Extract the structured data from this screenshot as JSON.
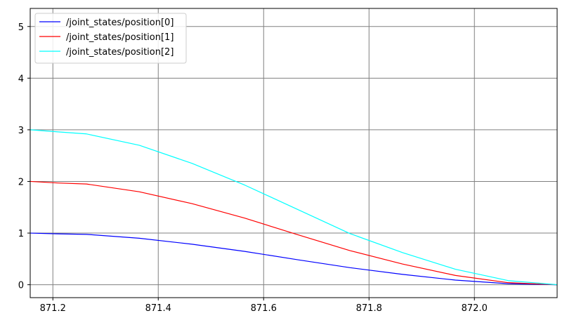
{
  "chart_data": {
    "type": "line",
    "title": "",
    "xlabel": "",
    "ylabel": "",
    "xlim": [
      871.157,
      872.157
    ],
    "ylim": [
      -0.25,
      5.35
    ],
    "x_ticks": [
      871.2,
      871.4,
      871.6,
      871.8,
      872.0
    ],
    "x_tick_labels": [
      "871.2",
      "871.4",
      "871.6",
      "871.8",
      "872.0"
    ],
    "y_ticks": [
      0,
      1,
      2,
      3,
      4,
      5
    ],
    "y_tick_labels": [
      "0",
      "1",
      "2",
      "3",
      "4",
      "5"
    ],
    "grid": true,
    "grid_color": "#808080",
    "legend_position": "top-left",
    "series": [
      {
        "name": "/joint_states/position[0]",
        "color": "#0000ff",
        "x": [
          871.157,
          871.21,
          871.264,
          871.364,
          871.464,
          871.564,
          871.664,
          871.764,
          871.864,
          871.964,
          872.064,
          872.157
        ],
        "y": [
          1.0,
          0.985,
          0.975,
          0.9,
          0.785,
          0.645,
          0.485,
          0.33,
          0.2,
          0.09,
          0.02,
          0.0
        ]
      },
      {
        "name": "/joint_states/position[1]",
        "color": "#ff0000",
        "x": [
          871.157,
          871.21,
          871.264,
          871.364,
          871.464,
          871.564,
          871.664,
          871.764,
          871.864,
          871.964,
          872.064,
          872.157
        ],
        "y": [
          2.0,
          1.97,
          1.95,
          1.8,
          1.57,
          1.29,
          0.97,
          0.66,
          0.4,
          0.18,
          0.04,
          0.0
        ]
      },
      {
        "name": "/joint_states/position[2]",
        "color": "#00ffff",
        "x": [
          871.157,
          871.21,
          871.264,
          871.364,
          871.464,
          871.564,
          871.664,
          871.764,
          871.864,
          871.964,
          872.064,
          872.157
        ],
        "y": [
          3.0,
          2.96,
          2.92,
          2.7,
          2.35,
          1.93,
          1.46,
          0.99,
          0.62,
          0.3,
          0.08,
          0.0
        ]
      }
    ]
  }
}
